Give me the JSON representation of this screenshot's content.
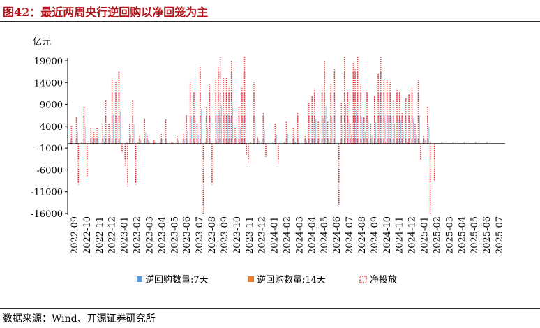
{
  "figure": {
    "title": "图42：最近两周央行逆回购以净回笼为主",
    "source": "数据来源：Wind、开源证券研究所"
  },
  "colors": {
    "title": "#b3121a",
    "series_7d": "#5b9bd5",
    "series_14d": "#ed7d31",
    "net": "#e31a1c"
  },
  "chart_data": {
    "type": "bar",
    "ylabel": "亿元",
    "ylim": [
      -16000,
      19000
    ],
    "yticks": [
      19000,
      14000,
      9000,
      4000,
      -1000,
      -6000,
      -11000,
      -16000
    ],
    "x_labels": [
      "2022-09",
      "2022-10",
      "2022-11",
      "2022-12",
      "2023-01",
      "2023-02",
      "2023-03",
      "2023-04",
      "2023-05",
      "2023-06",
      "2023-07",
      "2023-08",
      "2023-09",
      "2023-10",
      "2023-11",
      "2023-12",
      "2024-01",
      "2024-02",
      "2024-03",
      "2024-04",
      "2024-05",
      "2024-06",
      "2024-07",
      "2024-08",
      "2024-09",
      "2024-10",
      "2024-11",
      "2024-12",
      "2025-01",
      "2025-02",
      "2025-03",
      "2025-04",
      "2025-05",
      "2025-06",
      "2025-07"
    ],
    "legend": [
      {
        "key": "7d",
        "label": "逆回购数量:7天",
        "style": "bar"
      },
      {
        "key": "14d",
        "label": "逆回购数量:14天",
        "style": "bar"
      },
      {
        "key": "net",
        "label": "净投放",
        "style": "dotted-line"
      }
    ],
    "net_spikes": [
      {
        "month": 0.3,
        "value": 4000
      },
      {
        "month": 0.7,
        "value": 6000
      },
      {
        "month": 0.85,
        "value": -9500
      },
      {
        "month": 1.3,
        "value": 8500
      },
      {
        "month": 1.55,
        "value": -7500
      },
      {
        "month": 1.85,
        "value": 3500
      },
      {
        "month": 2.1,
        "value": 2800
      },
      {
        "month": 2.35,
        "value": 3500
      },
      {
        "month": 2.8,
        "value": 4000
      },
      {
        "month": 3.05,
        "value": 10000
      },
      {
        "month": 3.3,
        "value": 4500
      },
      {
        "month": 3.55,
        "value": 14800
      },
      {
        "month": 3.85,
        "value": 14200
      },
      {
        "month": 4.1,
        "value": 16500
      },
      {
        "month": 4.35,
        "value": -2000
      },
      {
        "month": 4.6,
        "value": -5000
      },
      {
        "month": 4.8,
        "value": -10000
      },
      {
        "month": 4.95,
        "value": 4500
      },
      {
        "month": 5.2,
        "value": 10000
      },
      {
        "month": 5.45,
        "value": -9500
      },
      {
        "month": 5.75,
        "value": 2000
      },
      {
        "month": 6.15,
        "value": 5800
      },
      {
        "month": 6.35,
        "value": 2000
      },
      {
        "month": 6.9,
        "value": 800
      },
      {
        "month": 7.5,
        "value": 2500
      },
      {
        "month": 7.85,
        "value": 5500
      },
      {
        "month": 8.35,
        "value": 400
      },
      {
        "month": 8.75,
        "value": 2000
      },
      {
        "month": 9.25,
        "value": 2500
      },
      {
        "month": 9.5,
        "value": 6500
      },
      {
        "month": 9.8,
        "value": 14000
      },
      {
        "month": 10.1,
        "value": 12000
      },
      {
        "month": 10.35,
        "value": 4500
      },
      {
        "month": 10.6,
        "value": 17800
      },
      {
        "month": 10.85,
        "value": -16000
      },
      {
        "month": 11.1,
        "value": 8500
      },
      {
        "month": 11.35,
        "value": 13500
      },
      {
        "month": 11.55,
        "value": -9500
      },
      {
        "month": 11.85,
        "value": 14500
      },
      {
        "month": 12.05,
        "value": 17500
      },
      {
        "month": 12.2,
        "value": 20000
      },
      {
        "month": 12.45,
        "value": 15000
      },
      {
        "month": 12.7,
        "value": 15000
      },
      {
        "month": 12.9,
        "value": 13000
      },
      {
        "month": 13.1,
        "value": 19000
      },
      {
        "month": 13.4,
        "value": 3500
      },
      {
        "month": 13.7,
        "value": 8500
      },
      {
        "month": 13.95,
        "value": 13000
      },
      {
        "month": 14.15,
        "value": 20000
      },
      {
        "month": 14.3,
        "value": -2500
      },
      {
        "month": 14.45,
        "value": -4500
      },
      {
        "month": 14.9,
        "value": 14000
      },
      {
        "month": 15.2,
        "value": 1500
      },
      {
        "month": 15.65,
        "value": 7000
      },
      {
        "month": 15.85,
        "value": -3000
      },
      {
        "month": 16.6,
        "value": 4500
      },
      {
        "month": 16.85,
        "value": -4500
      },
      {
        "month": 17.5,
        "value": 5000
      },
      {
        "month": 18.05,
        "value": 3500
      },
      {
        "month": 18.4,
        "value": 7000
      },
      {
        "month": 19.0,
        "value": 2000
      },
      {
        "month": 19.3,
        "value": 9500
      },
      {
        "month": 19.55,
        "value": 11000
      },
      {
        "month": 19.75,
        "value": 12500
      },
      {
        "month": 20.05,
        "value": 5000
      },
      {
        "month": 20.35,
        "value": 13000
      },
      {
        "month": 20.55,
        "value": 19000
      },
      {
        "month": 20.8,
        "value": 5000
      },
      {
        "month": 21.05,
        "value": 13500
      },
      {
        "month": 21.35,
        "value": 17000
      },
      {
        "month": 21.7,
        "value": -14000
      },
      {
        "month": 21.9,
        "value": 9500
      },
      {
        "month": 22.15,
        "value": 20000
      },
      {
        "month": 22.4,
        "value": 12000
      },
      {
        "month": 22.6,
        "value": 4500
      },
      {
        "month": 22.85,
        "value": 18500
      },
      {
        "month": 23.0,
        "value": 17000
      },
      {
        "month": 23.2,
        "value": 20000
      },
      {
        "month": 23.45,
        "value": 13500
      },
      {
        "month": 23.7,
        "value": 6000
      },
      {
        "month": 23.95,
        "value": 12000
      },
      {
        "month": 24.25,
        "value": 4500
      },
      {
        "month": 24.55,
        "value": 11000
      },
      {
        "month": 24.85,
        "value": 16000
      },
      {
        "month": 25.05,
        "value": 20000
      },
      {
        "month": 25.3,
        "value": 14500
      },
      {
        "month": 25.55,
        "value": 14500
      },
      {
        "month": 25.8,
        "value": 14000
      },
      {
        "month": 26.05,
        "value": 10000
      },
      {
        "month": 26.35,
        "value": 12500
      },
      {
        "month": 26.55,
        "value": 12000
      },
      {
        "month": 26.75,
        "value": 7000
      },
      {
        "month": 27.05,
        "value": 10500
      },
      {
        "month": 27.3,
        "value": 11500
      },
      {
        "month": 27.55,
        "value": 13000
      },
      {
        "month": 27.8,
        "value": 4500
      },
      {
        "month": 28.05,
        "value": 14500
      },
      {
        "month": 28.25,
        "value": -4000
      },
      {
        "month": 28.5,
        "value": 2000
      },
      {
        "month": 28.8,
        "value": 8500
      },
      {
        "month": 29.0,
        "value": -16500
      },
      {
        "month": 29.35,
        "value": -8500
      }
    ]
  }
}
